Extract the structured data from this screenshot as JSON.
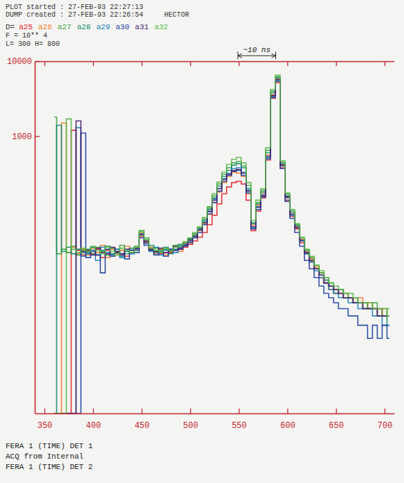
{
  "chart_data": {
    "type": "line",
    "title": "PLOT started : 27-FEB-93 22:27:13",
    "subtitle": "DUMP created : 27-FEB-93 22:26:54",
    "annotations": [
      {
        "text": "HECTOR"
      },
      {
        "text": "D="
      },
      {
        "text": "F = 10** 4"
      },
      {
        "text": "L= 300 H= 800"
      },
      {
        "text": "~10 ns",
        "x": [
          549,
          588
        ]
      },
      {
        "text": "FERA 1 (TIME) DET 1"
      },
      {
        "text": "ACQ from Internal"
      },
      {
        "text": "FERA 1 (TIME) DET 2"
      }
    ],
    "log": "y",
    "grid": false,
    "legend": "top-left",
    "line_style": "steps",
    "xlim": [
      340,
      710
    ],
    "xticks": [
      350,
      400,
      450,
      500,
      550,
      600,
      650,
      700
    ],
    "ylim": [
      0.2,
      10000
    ],
    "yticks": [
      1000,
      10000
    ],
    "x": [
      360,
      365,
      370,
      375,
      380,
      385,
      390,
      395,
      400,
      405,
      410,
      415,
      420,
      425,
      430,
      435,
      440,
      445,
      450,
      455,
      460,
      465,
      470,
      475,
      480,
      485,
      490,
      495,
      500,
      505,
      510,
      515,
      520,
      525,
      530,
      535,
      540,
      545,
      550,
      555,
      560,
      565,
      570,
      575,
      580,
      585,
      590,
      595,
      600,
      605,
      610,
      615,
      620,
      625,
      630,
      635,
      640,
      645,
      650,
      655,
      660,
      665,
      670,
      675,
      680,
      685,
      690,
      695,
      700,
      705
    ],
    "series": [
      {
        "name": "a25",
        "color": "#e3202a",
        "values": [
          0.2,
          0.2,
          0.2,
          0.2,
          1200,
          30,
          26,
          29,
          27,
          31,
          24,
          30,
          26,
          29,
          27,
          25,
          30,
          32,
          46,
          40,
          31,
          29,
          27,
          28,
          28,
          30,
          31,
          33,
          36,
          40,
          45,
          52,
          66,
          88,
          125,
          170,
          210,
          240,
          250,
          230,
          140,
          55,
          100,
          150,
          480,
          3200,
          5200,
          380,
          140,
          85,
          58,
          38,
          27,
          21,
          17,
          13,
          11,
          9,
          8,
          8,
          7,
          7,
          6,
          6,
          6,
          5,
          5,
          5,
          4,
          4
        ]
      },
      {
        "name": "a26",
        "color": "#f07a28",
        "values": [
          0.2,
          0.2,
          1500,
          28,
          33,
          27,
          31,
          26,
          32,
          28,
          35,
          24,
          31,
          27,
          30,
          34,
          28,
          30,
          52,
          38,
          33,
          27,
          31,
          26,
          30,
          33,
          29,
          37,
          39,
          47,
          55,
          68,
          90,
          130,
          180,
          240,
          290,
          330,
          320,
          290,
          170,
          65,
          120,
          170,
          560,
          3600,
          5800,
          420,
          160,
          95,
          62,
          42,
          29,
          23,
          18,
          15,
          12,
          10,
          9,
          8,
          8,
          7,
          6,
          7,
          5,
          6,
          5,
          4,
          5,
          4
        ]
      },
      {
        "name": "a27",
        "color": "#3aa03a",
        "values": [
          1800,
          27,
          31,
          28,
          34,
          26,
          30,
          31,
          27,
          33,
          29,
          26,
          32,
          28,
          35,
          27,
          30,
          34,
          55,
          44,
          30,
          32,
          28,
          31,
          29,
          35,
          33,
          38,
          42,
          50,
          60,
          78,
          110,
          160,
          230,
          310,
          380,
          440,
          460,
          400,
          220,
          70,
          130,
          190,
          650,
          4000,
          6200,
          450,
          170,
          100,
          66,
          44,
          30,
          24,
          19,
          15,
          13,
          11,
          9,
          9,
          8,
          7,
          7,
          6,
          6,
          5,
          6,
          5,
          4,
          5
        ]
      },
      {
        "name": "a28",
        "color": "#138a6a",
        "values": [
          0.2,
          1400,
          29,
          33,
          27,
          31,
          28,
          28,
          33,
          26,
          30,
          34,
          27,
          31,
          25,
          29,
          32,
          30,
          48,
          41,
          35,
          28,
          30,
          33,
          27,
          31,
          36,
          35,
          43,
          48,
          58,
          75,
          105,
          150,
          215,
          290,
          350,
          410,
          430,
          380,
          200,
          68,
          125,
          180,
          600,
          3800,
          6000,
          430,
          160,
          95,
          64,
          40,
          28,
          22,
          17,
          14,
          12,
          10,
          8,
          9,
          7,
          7,
          6,
          6,
          5,
          5,
          5,
          4,
          4,
          3
        ]
      },
      {
        "name": "a29",
        "color": "#1a7fb8",
        "values": [
          0.2,
          0.2,
          0.2,
          0.2,
          0.2,
          1300,
          25,
          27,
          30,
          22,
          33,
          28,
          26,
          31,
          24,
          29,
          27,
          31,
          50,
          37,
          29,
          33,
          26,
          30,
          31,
          28,
          34,
          36,
          40,
          46,
          57,
          72,
          100,
          145,
          200,
          270,
          320,
          370,
          380,
          330,
          190,
          60,
          115,
          165,
          520,
          3400,
          5600,
          400,
          150,
          88,
          60,
          40,
          27,
          21,
          16,
          13,
          11,
          9,
          8,
          7,
          7,
          6,
          6,
          5,
          5,
          5,
          4,
          4,
          3,
          3
        ]
      },
      {
        "name": "a30",
        "color": "#1c3f9e",
        "values": [
          0.2,
          0.2,
          0.2,
          0.2,
          0.2,
          0.2,
          1100,
          24,
          29,
          26,
          15,
          31,
          25,
          28,
          27,
          23,
          30,
          28,
          44,
          35,
          30,
          26,
          29,
          25,
          31,
          30,
          32,
          34,
          38,
          44,
          52,
          66,
          92,
          130,
          185,
          250,
          300,
          340,
          350,
          300,
          175,
          58,
          105,
          155,
          500,
          3300,
          5400,
          370,
          135,
          80,
          52,
          34,
          22,
          17,
          13,
          10,
          8,
          7,
          6,
          5,
          5,
          4,
          4,
          3,
          3,
          2,
          3,
          2,
          3,
          2
        ]
      },
      {
        "name": "a31",
        "color": "#4a1e6e",
        "values": [
          0.2,
          0.2,
          0.2,
          0.2,
          0.2,
          1600,
          29,
          30,
          26,
          32,
          28,
          27,
          33,
          29,
          26,
          31,
          28,
          32,
          49,
          39,
          31,
          29,
          32,
          28,
          30,
          34,
          31,
          35,
          41,
          46,
          56,
          70,
          98,
          140,
          200,
          265,
          310,
          350,
          360,
          320,
          185,
          62,
          112,
          160,
          540,
          3500,
          5700,
          410,
          155,
          90,
          61,
          41,
          28,
          22,
          17,
          14,
          11,
          10,
          9,
          8,
          7,
          7,
          6,
          6,
          5,
          5,
          5,
          4,
          4,
          4
        ]
      },
      {
        "name": "a32",
        "color": "#58b848",
        "values": [
          0.2,
          0.2,
          0.2,
          1700,
          31,
          28,
          32,
          29,
          34,
          30,
          27,
          33,
          29,
          26,
          32,
          30,
          28,
          33,
          53,
          42,
          32,
          30,
          29,
          32,
          30,
          33,
          35,
          39,
          44,
          52,
          62,
          82,
          115,
          170,
          245,
          330,
          420,
          490,
          520,
          440,
          240,
          75,
          140,
          200,
          700,
          4200,
          6500,
          470,
          175,
          105,
          68,
          45,
          31,
          25,
          19,
          16,
          13,
          11,
          10,
          9,
          8,
          8,
          7,
          6,
          6,
          6,
          5,
          5,
          5,
          4
        ]
      }
    ]
  }
}
